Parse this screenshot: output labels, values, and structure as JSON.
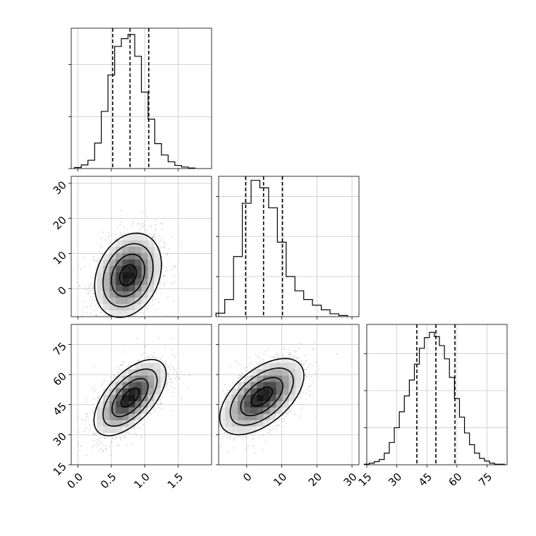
{
  "chart_data": {
    "type": "corner",
    "grid": true,
    "params": [
      {
        "range": [
          -0.1,
          2.0
        ],
        "ticks": [
          0.0,
          0.5,
          1.0,
          1.5
        ],
        "tick_labels": [
          "0.0",
          "0.5",
          "1.0",
          "1.5"
        ],
        "quantiles": [
          0.52,
          0.78,
          1.06
        ],
        "hist_x": [
          0.0,
          0.1,
          0.2,
          0.3,
          0.4,
          0.5,
          0.6,
          0.7,
          0.8,
          0.9,
          1.0,
          1.1,
          1.2,
          1.3,
          1.4,
          1.5,
          1.6,
          1.7
        ],
        "hist_y": [
          2,
          7,
          16,
          49,
          110,
          180,
          235,
          250,
          258,
          216,
          147,
          95,
          48,
          26,
          13,
          6,
          3,
          1
        ],
        "hist_ymax": 270,
        "hist_ticks": [
          0,
          100,
          200
        ]
      },
      {
        "range": [
          -8,
          32
        ],
        "ticks": [
          0,
          10,
          20,
          30
        ],
        "tick_labels": [
          "0",
          "10",
          "20",
          "30"
        ],
        "quantiles": [
          -0.3,
          4.8,
          10.2
        ],
        "hist_x": [
          -7.5,
          -5,
          -2.5,
          0,
          2.5,
          5,
          7.5,
          10,
          12.5,
          15,
          17.5,
          20,
          22.5,
          25,
          27.5
        ],
        "hist_y": [
          6,
          30,
          105,
          198,
          238,
          225,
          190,
          130,
          70,
          45,
          30,
          20,
          12,
          5,
          2
        ],
        "hist_ymax": 245,
        "hist_ticks": [
          0,
          70,
          140,
          210
        ]
      },
      {
        "range": [
          15,
          85
        ],
        "ticks": [
          15,
          30,
          45,
          60,
          75
        ],
        "tick_labels": [
          "15",
          "30",
          "45",
          "60",
          "75"
        ],
        "quantiles": [
          40,
          49.5,
          59
        ],
        "hist_x": [
          15,
          17.5,
          20,
          22.5,
          25,
          27.5,
          30,
          32.5,
          35,
          37.5,
          40,
          42.5,
          45,
          47.5,
          50,
          52.5,
          55,
          57.5,
          60,
          62.5,
          65,
          67.5,
          70,
          72.5,
          75,
          77.5,
          80,
          82.5
        ],
        "hist_y": [
          1,
          3,
          6,
          10,
          22,
          42,
          70,
          100,
          130,
          160,
          190,
          220,
          240,
          250,
          242,
          225,
          200,
          165,
          125,
          90,
          60,
          38,
          22,
          12,
          7,
          3,
          1,
          1
        ],
        "hist_ymax": 265,
        "hist_ticks": [
          0,
          70,
          140,
          210
        ]
      }
    ],
    "pairs": [
      {
        "x_param": 0,
        "y_param": 1,
        "center": [
          0.75,
          3.8
        ],
        "sigma": [
          0.25,
          6.0
        ],
        "rho": 0.25,
        "levels_sigma": [
          0.5,
          1.0,
          1.5,
          2.0
        ]
      },
      {
        "x_param": 0,
        "y_param": 2,
        "center": [
          0.78,
          48.5
        ],
        "sigma": [
          0.27,
          9.5
        ],
        "rho": 0.6,
        "levels_sigma": [
          0.5,
          1.0,
          1.5,
          2.0
        ]
      },
      {
        "x_param": 1,
        "y_param": 2,
        "center": [
          4.3,
          49.0
        ],
        "sigma": [
          6.0,
          9.5
        ],
        "rho": 0.55,
        "levels_sigma": [
          0.5,
          1.0,
          1.5,
          2.0
        ]
      }
    ]
  }
}
